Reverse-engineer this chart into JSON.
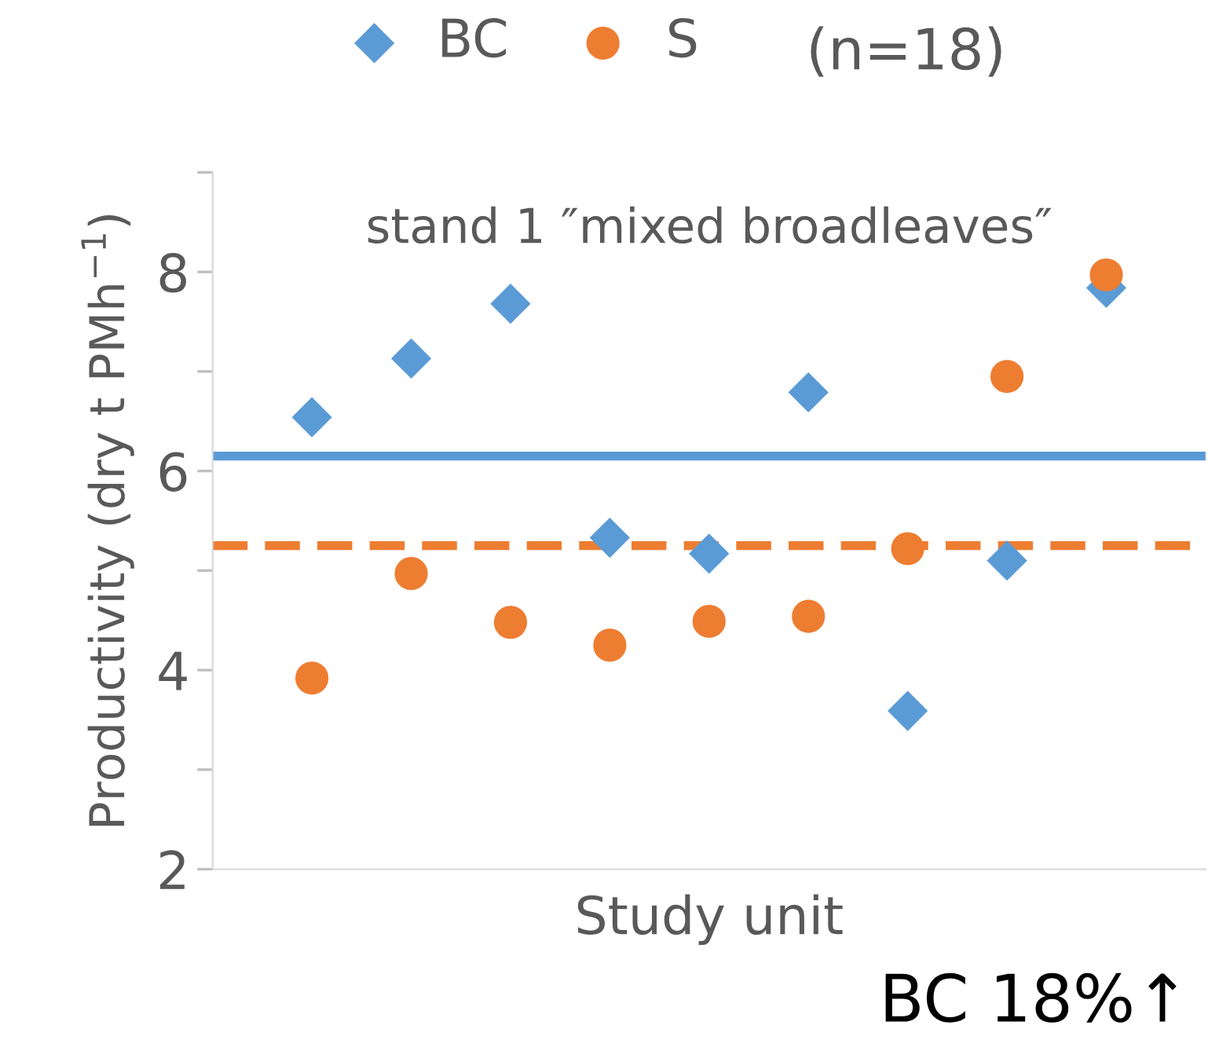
{
  "chart_data": {
    "type": "scatter",
    "title": "stand 1 ″mixed broadleaves″",
    "xlabel": "Study unit",
    "ylabel": "Productivity (dry t PMh$^{−1}$)",
    "categories": [
      null,
      null,
      null,
      null,
      null,
      null,
      null,
      null,
      null
    ],
    "series": [
      {
        "name": "BC",
        "color": "#5b9bd5",
        "marker": "diamond",
        "values": [
          6.54,
          7.13,
          7.68,
          5.33,
          5.17,
          6.79,
          3.59,
          5.1,
          7.84
        ]
      },
      {
        "name": "S",
        "color": "#ed7d31",
        "marker": "circle",
        "values": [
          3.92,
          4.97,
          4.48,
          4.25,
          4.49,
          4.54,
          5.22,
          6.95,
          7.97
        ]
      }
    ],
    "ref_lines": [
      {
        "axis": "y",
        "value": 6.15,
        "color": "#5b9bd5",
        "line_style": "solid"
      },
      {
        "axis": "y",
        "value": 5.25,
        "color": "#ed7d31",
        "line_style": "dashed"
      }
    ],
    "ylim": [
      2,
      9
    ],
    "yticks": [
      2,
      {
        "value": 3,
        "label": null
      },
      4,
      {
        "value": 5,
        "label": null
      },
      6,
      {
        "value": 7,
        "label": null
      },
      8,
      {
        "value": 9,
        "label": null
      }
    ],
    "tick_labels": "y",
    "grid": false,
    "legend": "top",
    "annotations": [
      "(n=18)",
      "BC 18%↑"
    ]
  }
}
